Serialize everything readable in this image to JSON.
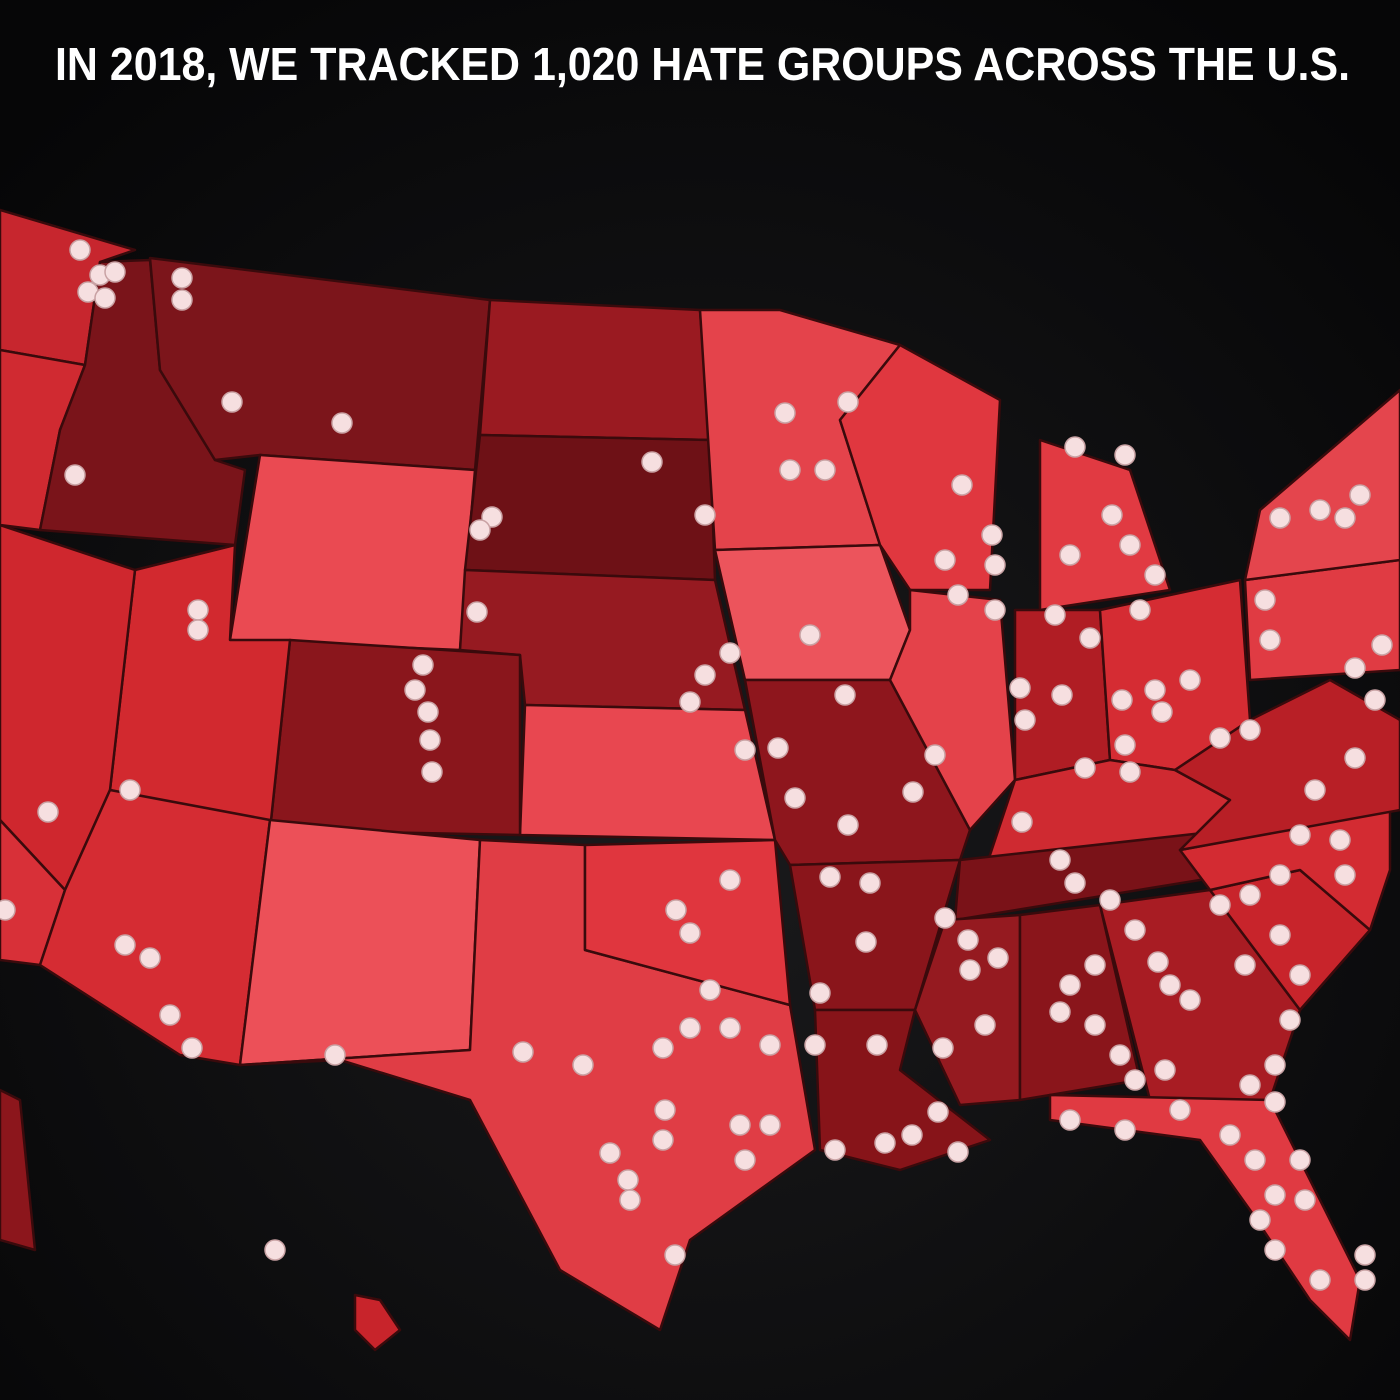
{
  "title": "IN 2018, WE TRACKED 1,020 HATE GROUPS ACROSS THE U.S."
}
